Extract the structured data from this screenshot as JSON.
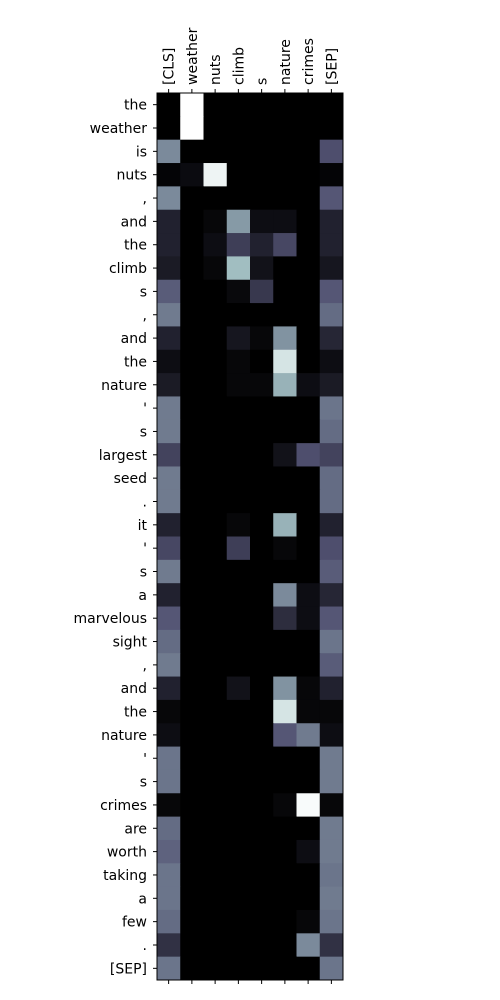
{
  "chart_data": {
    "type": "heatmap",
    "title": "",
    "xlabel": "",
    "ylabel": "",
    "colormap": "bone",
    "x_labels": [
      "[CLS]",
      "weather",
      "nuts",
      "climb",
      "s",
      "nature",
      "crimes",
      "[SEP]"
    ],
    "y_labels": [
      "the",
      "weather",
      "is",
      "nuts",
      ",",
      "and",
      "the",
      "climb",
      "s",
      ",",
      "and",
      "the",
      "nature",
      "'",
      "s",
      "largest",
      "seed",
      ".",
      "it",
      "'",
      "s",
      "a",
      "marvelous",
      "sight",
      ",",
      "and",
      "the",
      "nature",
      "'",
      "s",
      "crimes",
      "are",
      "worth",
      "taking",
      "a",
      "few",
      ".",
      "[SEP]"
    ],
    "values": [
      [
        0.0,
        1.0,
        0.0,
        0.0,
        0.0,
        0.0,
        0.0,
        0.0
      ],
      [
        0.0,
        1.0,
        0.0,
        0.0,
        0.0,
        0.0,
        0.0,
        0.0
      ],
      [
        0.55,
        0.0,
        0.0,
        0.0,
        0.0,
        0.0,
        0.0,
        0.35
      ],
      [
        0.02,
        0.05,
        0.95,
        0.0,
        0.0,
        0.0,
        0.0,
        0.02
      ],
      [
        0.55,
        0.0,
        0.0,
        0.0,
        0.0,
        0.0,
        0.0,
        0.38
      ],
      [
        0.15,
        0.0,
        0.03,
        0.6,
        0.06,
        0.06,
        0.0,
        0.15
      ],
      [
        0.15,
        0.0,
        0.06,
        0.28,
        0.15,
        0.32,
        0.0,
        0.15
      ],
      [
        0.12,
        0.0,
        0.03,
        0.72,
        0.08,
        0.0,
        0.0,
        0.1
      ],
      [
        0.4,
        0.0,
        0.0,
        0.04,
        0.25,
        0.0,
        0.0,
        0.38
      ],
      [
        0.5,
        0.0,
        0.0,
        0.0,
        0.0,
        0.0,
        0.0,
        0.45
      ],
      [
        0.15,
        0.0,
        0.0,
        0.1,
        0.03,
        0.58,
        0.0,
        0.17
      ],
      [
        0.06,
        0.0,
        0.0,
        0.03,
        0.0,
        0.88,
        0.0,
        0.06
      ],
      [
        0.12,
        0.0,
        0.0,
        0.03,
        0.03,
        0.68,
        0.06,
        0.12
      ],
      [
        0.5,
        0.0,
        0.0,
        0.0,
        0.0,
        0.0,
        0.0,
        0.48
      ],
      [
        0.5,
        0.0,
        0.0,
        0.0,
        0.0,
        0.0,
        0.0,
        0.45
      ],
      [
        0.3,
        0.0,
        0.0,
        0.0,
        0.0,
        0.08,
        0.35,
        0.3
      ],
      [
        0.5,
        0.0,
        0.0,
        0.0,
        0.0,
        0.0,
        0.0,
        0.45
      ],
      [
        0.5,
        0.0,
        0.0,
        0.0,
        0.0,
        0.0,
        0.0,
        0.45
      ],
      [
        0.15,
        0.0,
        0.0,
        0.03,
        0.0,
        0.68,
        0.0,
        0.15
      ],
      [
        0.32,
        0.0,
        0.0,
        0.28,
        0.0,
        0.03,
        0.0,
        0.35
      ],
      [
        0.5,
        0.0,
        0.0,
        0.0,
        0.0,
        0.0,
        0.0,
        0.4
      ],
      [
        0.15,
        0.0,
        0.0,
        0.0,
        0.0,
        0.55,
        0.06,
        0.17
      ],
      [
        0.38,
        0.0,
        0.0,
        0.0,
        0.0,
        0.2,
        0.06,
        0.38
      ],
      [
        0.45,
        0.0,
        0.0,
        0.0,
        0.0,
        0.0,
        0.0,
        0.48
      ],
      [
        0.5,
        0.0,
        0.0,
        0.0,
        0.0,
        0.0,
        0.0,
        0.4
      ],
      [
        0.15,
        0.0,
        0.0,
        0.08,
        0.0,
        0.58,
        0.03,
        0.15
      ],
      [
        0.03,
        0.0,
        0.0,
        0.0,
        0.0,
        0.88,
        0.03,
        0.03
      ],
      [
        0.06,
        0.0,
        0.0,
        0.0,
        0.0,
        0.38,
        0.5,
        0.06
      ],
      [
        0.48,
        0.0,
        0.0,
        0.0,
        0.0,
        0.0,
        0.0,
        0.5
      ],
      [
        0.48,
        0.0,
        0.0,
        0.0,
        0.0,
        0.0,
        0.0,
        0.5
      ],
      [
        0.03,
        0.0,
        0.0,
        0.0,
        0.0,
        0.03,
        0.98,
        0.03
      ],
      [
        0.45,
        0.0,
        0.0,
        0.0,
        0.0,
        0.0,
        0.0,
        0.5
      ],
      [
        0.42,
        0.0,
        0.0,
        0.0,
        0.0,
        0.0,
        0.06,
        0.5
      ],
      [
        0.48,
        0.0,
        0.0,
        0.0,
        0.0,
        0.0,
        0.0,
        0.48
      ],
      [
        0.48,
        0.0,
        0.0,
        0.0,
        0.0,
        0.0,
        0.0,
        0.5
      ],
      [
        0.45,
        0.0,
        0.0,
        0.0,
        0.0,
        0.0,
        0.03,
        0.48
      ],
      [
        0.22,
        0.0,
        0.0,
        0.0,
        0.0,
        0.0,
        0.55,
        0.22
      ],
      [
        0.48,
        0.0,
        0.0,
        0.0,
        0.0,
        0.0,
        0.0,
        0.48
      ]
    ]
  }
}
